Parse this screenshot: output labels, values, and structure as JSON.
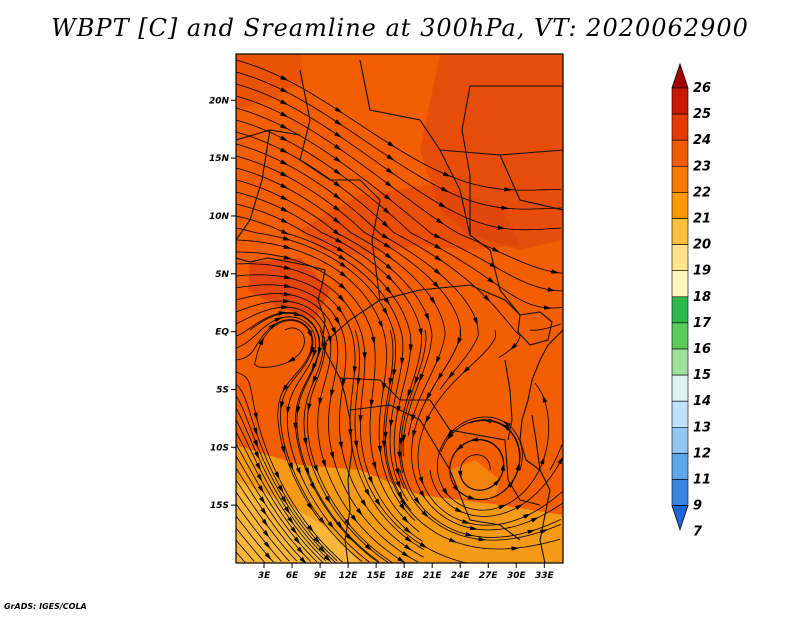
{
  "title": "WBPT [C] and Sreamline at 300hPa, VT: 2020062900",
  "credit": "GrADS: IGES/COLA",
  "map": {
    "lon_range": [
      0,
      35
    ],
    "lat_range": [
      -20,
      24
    ],
    "lat_ticks": [
      {
        "value": 20,
        "label": "20N"
      },
      {
        "value": 15,
        "label": "15N"
      },
      {
        "value": 10,
        "label": "10N"
      },
      {
        "value": 5,
        "label": "5N"
      },
      {
        "value": 0,
        "label": "EQ"
      },
      {
        "value": -5,
        "label": "5S"
      },
      {
        "value": -10,
        "label": "10S"
      },
      {
        "value": -15,
        "label": "15S"
      }
    ],
    "lon_ticks": [
      {
        "value": 3,
        "label": "3E"
      },
      {
        "value": 6,
        "label": "6E"
      },
      {
        "value": 9,
        "label": "9E"
      },
      {
        "value": 12,
        "label": "12E"
      },
      {
        "value": 15,
        "label": "15E"
      },
      {
        "value": 18,
        "label": "18E"
      },
      {
        "value": 21,
        "label": "21E"
      },
      {
        "value": 24,
        "label": "24E"
      },
      {
        "value": 27,
        "label": "27E"
      },
      {
        "value": 30,
        "label": "30E"
      },
      {
        "value": 33,
        "label": "33E"
      }
    ]
  },
  "colorbar": {
    "labels": [
      "26",
      "25",
      "24",
      "23",
      "22",
      "21",
      "20",
      "19",
      "18",
      "17",
      "16",
      "15",
      "14",
      "13",
      "12",
      "11",
      "9",
      "7"
    ],
    "colors": [
      "#a50000",
      "#c81a00",
      "#e23b00",
      "#f05a00",
      "#f77800",
      "#fb9a00",
      "#fcc23d",
      "#fde58d",
      "#fff5bf",
      "#2db84b",
      "#5ccc5c",
      "#9ee29e",
      "#dcf5f5",
      "#bfe2fa",
      "#90c6f2",
      "#5ea5ea",
      "#3b86e0",
      "#1f66d6"
    ]
  },
  "colors": {
    "field_base": "#f25e00",
    "warm_core": "#de3f10",
    "cool_south": "#f59a14",
    "cooler_sw": "#f7b53a"
  }
}
